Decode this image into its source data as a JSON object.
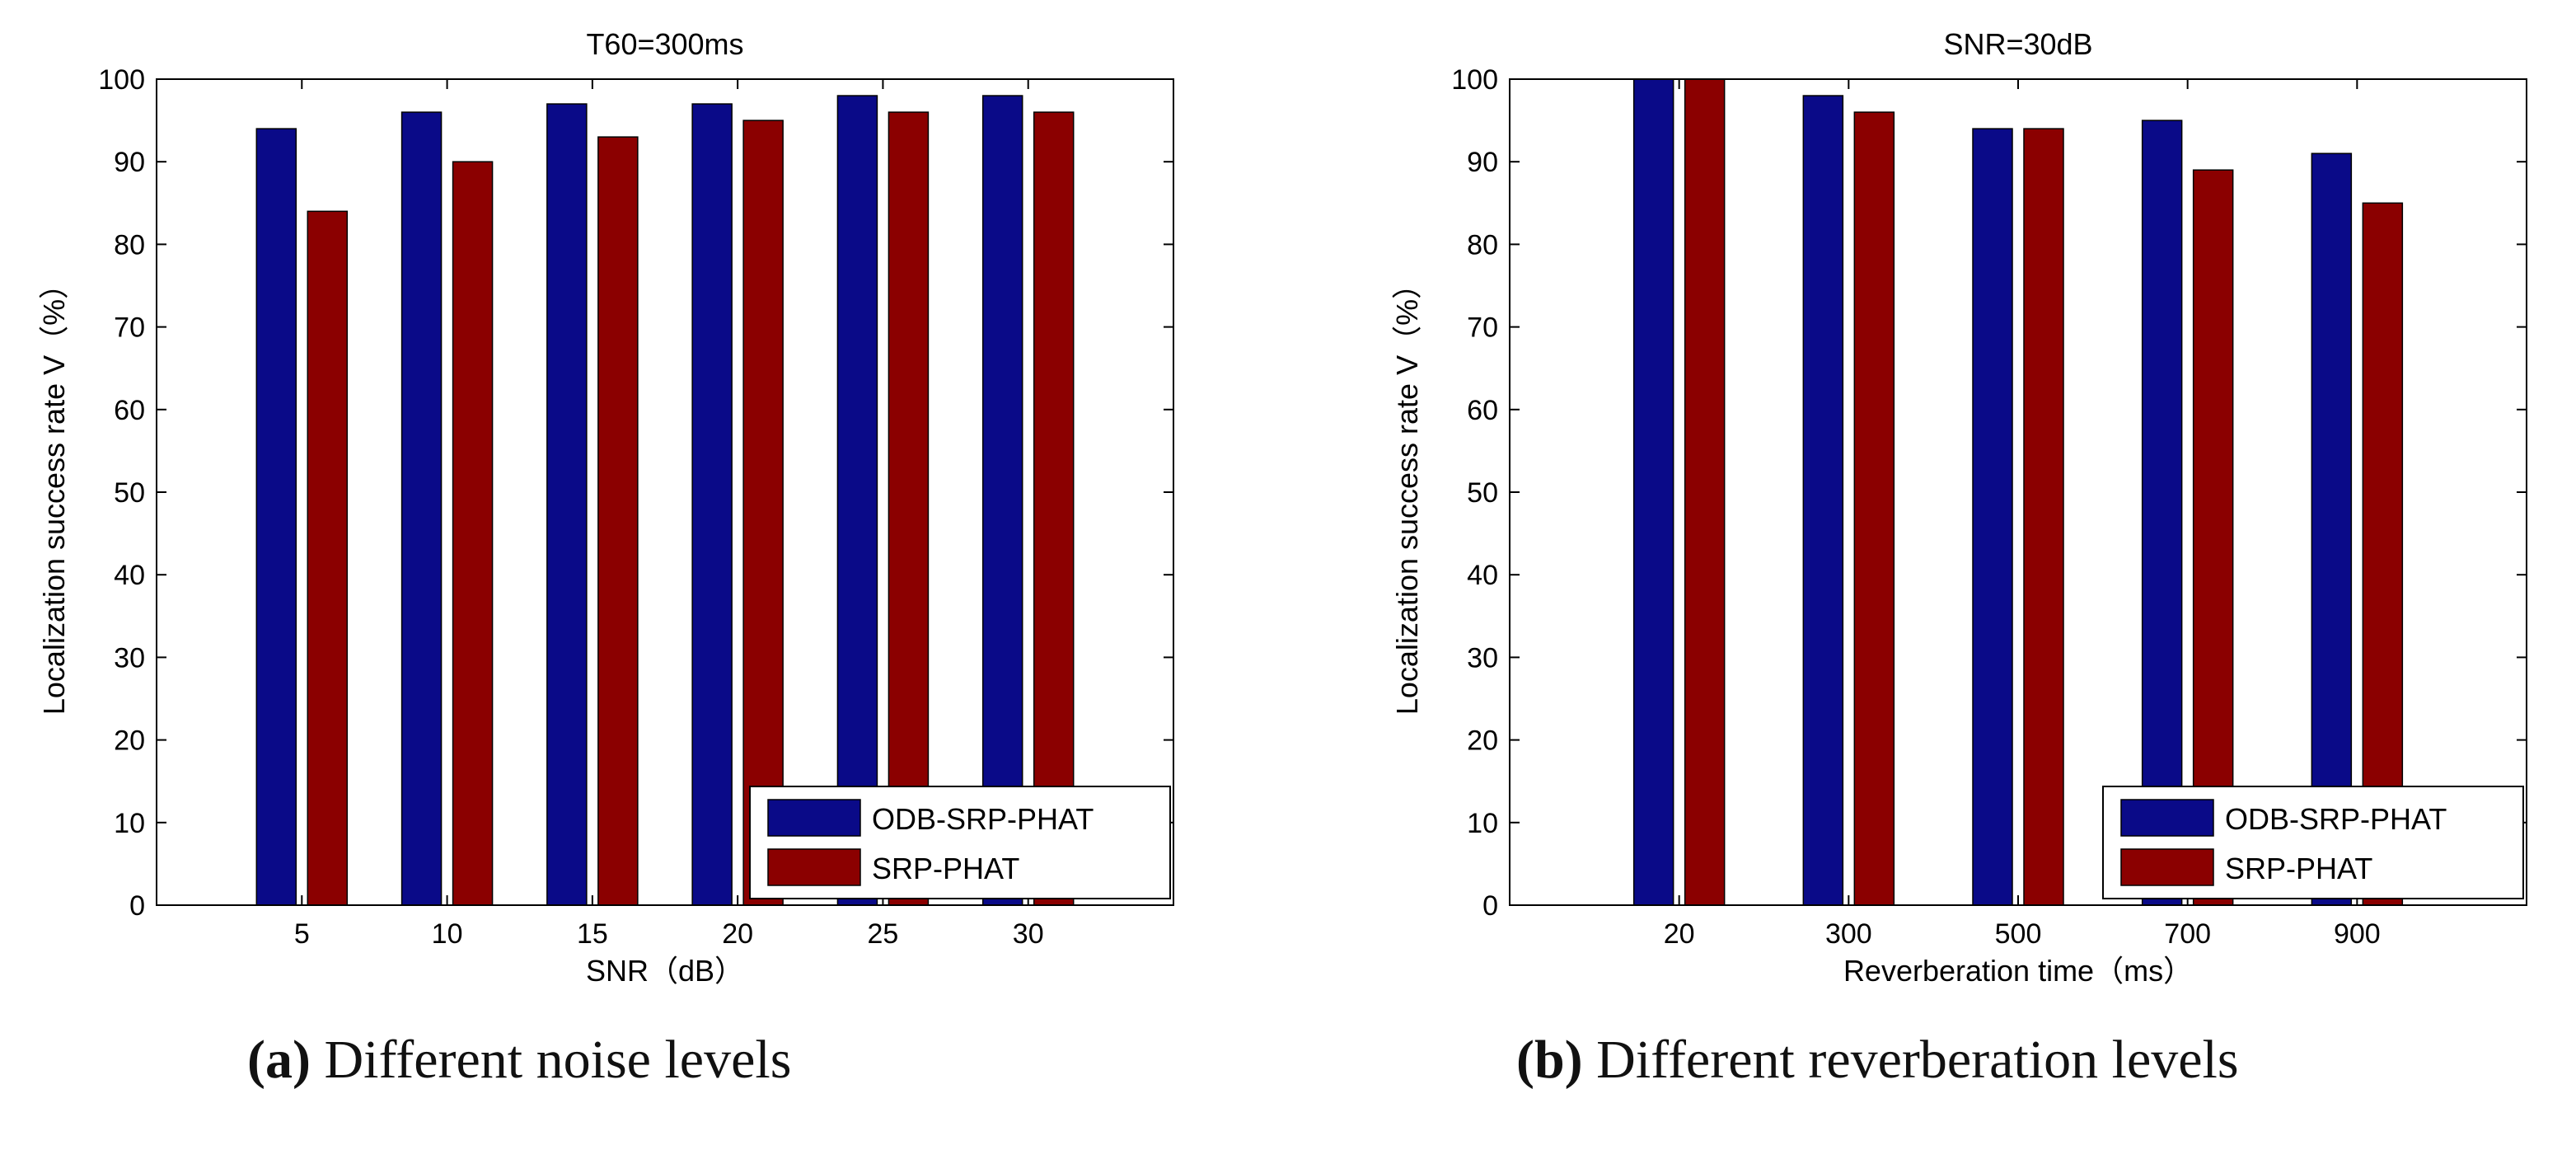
{
  "colors": {
    "ours": "#0a0a88",
    "baseline": "#8b0000",
    "axis": "#000000"
  },
  "chart_data": [
    {
      "type": "bar",
      "panel": "a",
      "title": "T60=300ms",
      "xlabel": "SNR（dB）",
      "ylabel": "Localization success rate V（%）",
      "categories": [
        "5",
        "10",
        "15",
        "20",
        "25",
        "30"
      ],
      "ylim": [
        0,
        100
      ],
      "yticks": [
        "0",
        "10",
        "20",
        "30",
        "40",
        "50",
        "60",
        "70",
        "80",
        "90",
        "100"
      ],
      "legend_position": "bottom-right",
      "series": [
        {
          "name": "ODB-SRP-PHAT",
          "values": [
            94,
            96,
            97,
            97,
            98,
            98
          ]
        },
        {
          "name": "SRP-PHAT",
          "values": [
            84,
            90,
            93,
            95,
            96,
            96
          ]
        }
      ]
    },
    {
      "type": "bar",
      "panel": "b",
      "title": "SNR=30dB",
      "xlabel": "Reverberation time（ms）",
      "ylabel": "Localization success rate V（%）",
      "categories": [
        "20",
        "300",
        "500",
        "700",
        "900"
      ],
      "ylim": [
        0,
        100
      ],
      "yticks": [
        "0",
        "10",
        "20",
        "30",
        "40",
        "50",
        "60",
        "70",
        "80",
        "90",
        "100"
      ],
      "legend_position": "bottom-right",
      "series": [
        {
          "name": "ODB-SRP-PHAT",
          "values": [
            100,
            98,
            94,
            95,
            91
          ]
        },
        {
          "name": "SRP-PHAT",
          "values": [
            100,
            96,
            94,
            89,
            85
          ]
        }
      ]
    }
  ],
  "captions": [
    {
      "tag": "(a)",
      "text": " Different noise levels"
    },
    {
      "tag": "(b)",
      "text": " Different reverberation levels"
    }
  ]
}
